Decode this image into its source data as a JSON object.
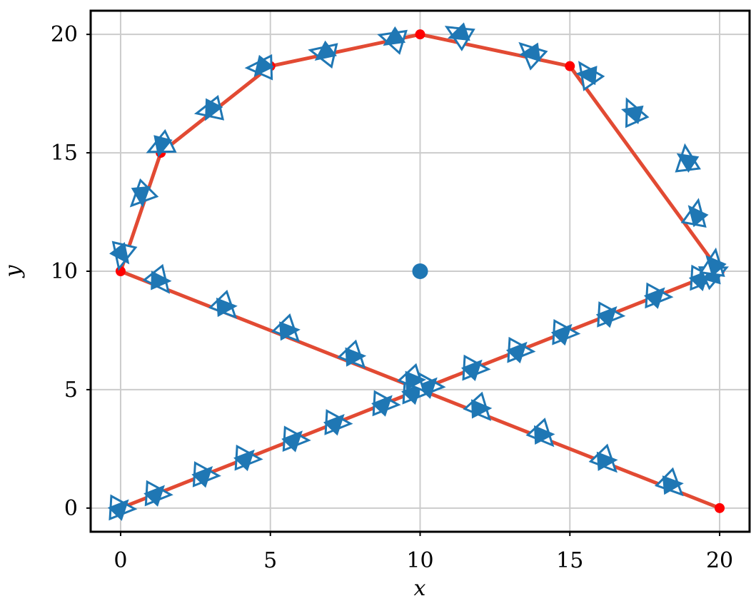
{
  "chart_data": {
    "type": "line",
    "x_label": "x",
    "y_label": "y",
    "xlim": [
      -1,
      21
    ],
    "ylim": [
      -1,
      21
    ],
    "xticks": [
      0,
      5,
      10,
      15,
      20
    ],
    "yticks": [
      0,
      5,
      10,
      15,
      20
    ],
    "grid": true,
    "series": [
      {
        "color": "#e24a33",
        "marker": "none",
        "x": [
          0,
          20,
          15,
          10,
          5,
          1.34,
          0,
          20
        ],
        "y": [
          0,
          10,
          18.66,
          20,
          18.66,
          15,
          10,
          0
        ]
      },
      {
        "color": "#ff0000",
        "marker": "circle",
        "x": [
          0,
          1.34,
          5,
          10,
          15,
          20,
          20
        ],
        "y": [
          10,
          15,
          18.66,
          20,
          18.66,
          10,
          0
        ]
      },
      {
        "color": "#1f77b4",
        "marker": "circle-large",
        "x": [
          10
        ],
        "y": [
          10
        ]
      },
      {
        "color": "#1f77b4",
        "marker": "triangle",
        "x": [
          0,
          1.2,
          2.8,
          4.2,
          5.8,
          7.2,
          8.8,
          9.8,
          10.3,
          11.8,
          13.3,
          14.8,
          16.3,
          17.9,
          19.4,
          19.8,
          19.8,
          19.2,
          18.9,
          17.1,
          15.6,
          13.7,
          11.3,
          9.1,
          6.8,
          4.7,
          3,
          1.35,
          0.7,
          0.05,
          1.3,
          3.5,
          5.6,
          7.8,
          9.8,
          12,
          14.1,
          16.2,
          18.4
        ],
        "y": [
          0,
          0.6,
          1.4,
          2.1,
          2.9,
          3.6,
          4.4,
          4.9,
          5.15,
          5.9,
          6.65,
          7.4,
          8.15,
          8.95,
          9.7,
          9.9,
          10.3,
          12.4,
          14.7,
          16.7,
          18.3,
          19.2,
          20,
          19.8,
          19.2,
          18.6,
          16.8,
          15.3,
          13.2,
          10.7,
          9.6,
          8.5,
          7.5,
          6.4,
          5.4,
          4.2,
          3.1,
          2,
          1
        ]
      }
    ]
  }
}
